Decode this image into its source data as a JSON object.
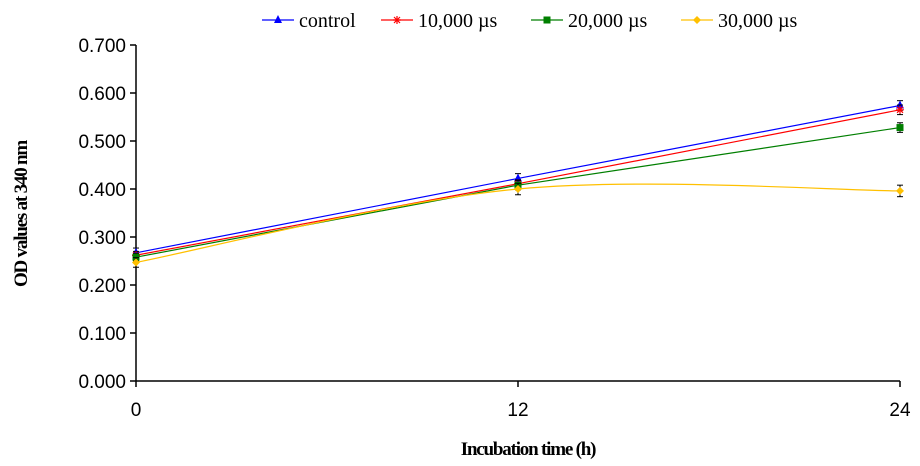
{
  "chart_data": {
    "type": "line",
    "xlabel": "Incubation time (h)",
    "ylabel": "OD values at 340 nm",
    "x": [
      0,
      12,
      24
    ],
    "x_tick_labels": [
      "0",
      "12",
      "24"
    ],
    "y_tick_labels": [
      "0.000",
      "0.100",
      "0.200",
      "0.300",
      "0.400",
      "0.500",
      "0.600",
      "0.700"
    ],
    "ylim": [
      0,
      0.7
    ],
    "grid": false,
    "legend_position": "top",
    "series": [
      {
        "name": "control",
        "color": "#0000ff",
        "marker": "triangle",
        "values": [
          0.267,
          0.422,
          0.574
        ],
        "errors": [
          0.01,
          0.01,
          0.01
        ]
      },
      {
        "name": "10,000 µs",
        "color": "#ff0000",
        "marker": "star",
        "values": [
          0.262,
          0.411,
          0.565
        ],
        "errors": [
          0.008,
          0.008,
          0.01
        ]
      },
      {
        "name": "20,000 µs",
        "color": "#007f00",
        "marker": "square",
        "values": [
          0.258,
          0.408,
          0.528
        ],
        "errors": [
          0.008,
          0.01,
          0.01
        ]
      },
      {
        "name": "30,000 µs",
        "color": "#ffc000",
        "marker": "diamond",
        "values": [
          0.247,
          0.4,
          0.396
        ],
        "errors": [
          0.01,
          0.012,
          0.012
        ],
        "smooth": true
      }
    ]
  }
}
